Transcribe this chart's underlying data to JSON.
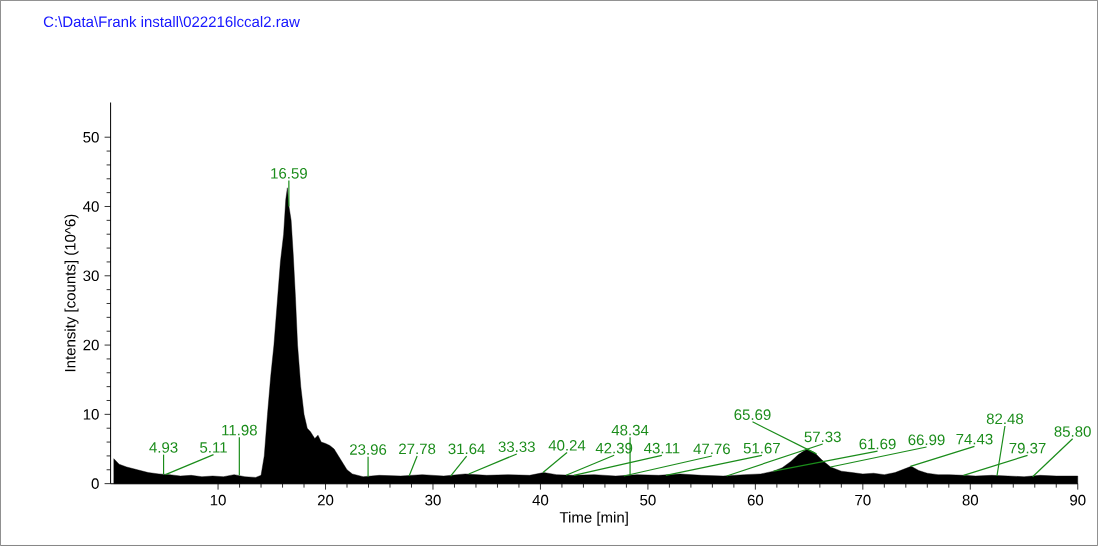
{
  "chart_data": {
    "type": "area",
    "title": "C:\\Data\\Frank install\\022216lccal2.raw",
    "xlabel": "Time [min]",
    "ylabel": "Intensity [counts] (10^6)",
    "xlim": [
      0,
      90
    ],
    "ylim": [
      0,
      55
    ],
    "xticks": [
      10,
      20,
      30,
      40,
      50,
      60,
      70,
      80,
      90
    ],
    "yticks": [
      0,
      10,
      20,
      30,
      40,
      50
    ],
    "grid": false,
    "series": [
      {
        "color": "#000000",
        "x": [
          0.3,
          0.8,
          1.5,
          2.5,
          3.5,
          4.5,
          5.5,
          6.5,
          7.5,
          8.5,
          9.5,
          10.5,
          11.5,
          12.5,
          13.5,
          14.0,
          14.3,
          14.6,
          14.9,
          15.2,
          15.5,
          15.8,
          16.1,
          16.3,
          16.45,
          16.6,
          16.8,
          17.0,
          17.2,
          17.4,
          17.7,
          18.0,
          18.3,
          18.6,
          19.0,
          19.3,
          19.6,
          20.0,
          20.4,
          20.8,
          21.2,
          21.6,
          22.0,
          22.5,
          23.5,
          25,
          27,
          29,
          31,
          33,
          35,
          37,
          39,
          40.3,
          41.5,
          43,
          45,
          47,
          49,
          51,
          53,
          55,
          57,
          59,
          60.5,
          61.7,
          62.5,
          63.3,
          64.0,
          64.8,
          65.5,
          66.2,
          67.0,
          68,
          69,
          70,
          71,
          72,
          73,
          74,
          74.5,
          75.2,
          76,
          77,
          78,
          79.4,
          80.5,
          82,
          83.5,
          85,
          86.5,
          88,
          90
        ],
        "values": [
          3.6,
          2.8,
          2.4,
          2.0,
          1.6,
          1.4,
          1.3,
          1.1,
          1.2,
          1.0,
          1.1,
          1.0,
          1.3,
          1.0,
          0.9,
          1.2,
          4,
          10,
          15.5,
          20,
          26,
          32,
          36,
          41,
          42.7,
          40,
          38,
          33,
          27,
          20,
          14,
          10,
          8,
          7.5,
          6.5,
          7.0,
          6,
          5.8,
          5.5,
          5.0,
          4.0,
          3.0,
          2.0,
          1.4,
          1.0,
          1.2,
          1.1,
          1.3,
          1.1,
          1.4,
          1.2,
          1.3,
          1.2,
          1.6,
          1.3,
          1.2,
          1.3,
          1.1,
          1.3,
          1.2,
          1.4,
          1.2,
          1.1,
          1.3,
          1.4,
          1.8,
          2.3,
          3.2,
          4.2,
          5.0,
          4.5,
          3.4,
          2.4,
          1.8,
          1.6,
          1.4,
          1.5,
          1.3,
          1.6,
          2.2,
          2.5,
          1.9,
          1.5,
          1.3,
          1.3,
          1.2,
          1.1,
          1.2,
          1.1,
          1.0,
          1.2,
          1.1,
          1.1
        ]
      }
    ],
    "annotations": [
      {
        "text": "5.11",
        "x": 5.11,
        "y": 1.3
      },
      {
        "text": "4.93",
        "x": 4.93,
        "y": 1.3
      },
      {
        "text": "11.98",
        "x": 11.98,
        "y": 1.2
      },
      {
        "text": "16.59",
        "x": 16.59,
        "y": 40
      },
      {
        "text": "23.96",
        "x": 23.96,
        "y": 1.0
      },
      {
        "text": "27.78",
        "x": 27.78,
        "y": 1.1
      },
      {
        "text": "31.64",
        "x": 31.64,
        "y": 1.1
      },
      {
        "text": "33.33",
        "x": 33.33,
        "y": 1.4
      },
      {
        "text": "40.24",
        "x": 40.24,
        "y": 1.6
      },
      {
        "text": "43.11",
        "x": 43.11,
        "y": 1.2
      },
      {
        "text": "42.39",
        "x": 42.39,
        "y": 1.2
      },
      {
        "text": "47.76",
        "x": 47.76,
        "y": 1.1
      },
      {
        "text": "48.34",
        "x": 48.34,
        "y": 1.2
      },
      {
        "text": "51.67",
        "x": 51.67,
        "y": 1.2
      },
      {
        "text": "57.33",
        "x": 57.33,
        "y": 1.1
      },
      {
        "text": "61.69",
        "x": 61.69,
        "y": 1.8
      },
      {
        "text": "66.99",
        "x": 66.99,
        "y": 2.4
      },
      {
        "text": "65.69",
        "x": 65.69,
        "y": 4.3
      },
      {
        "text": "74.43",
        "x": 74.43,
        "y": 2.5
      },
      {
        "text": "79.37",
        "x": 79.37,
        "y": 1.2
      },
      {
        "text": "82.48",
        "x": 82.48,
        "y": 1.1
      },
      {
        "text": "85.80",
        "x": 85.8,
        "y": 1.0
      }
    ]
  }
}
